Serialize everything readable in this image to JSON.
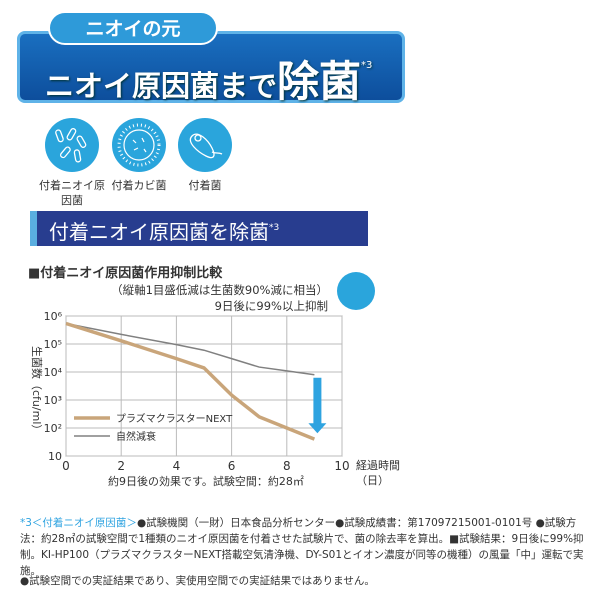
{
  "banner": {
    "pill": "ニオイの元",
    "headline_a": "ニオイ原因菌まで",
    "headline_b": "除菌",
    "sup": "*3"
  },
  "icons": [
    {
      "icon": "bacteria-rods-icon",
      "label": "付着ニオイ原因菌"
    },
    {
      "icon": "mold-spore-icon",
      "label": "付着カビ菌"
    },
    {
      "icon": "bacterium-icon",
      "label": "付着菌"
    }
  ],
  "section": {
    "title": "付着ニオイ原因菌を除菌",
    "sup": "*3"
  },
  "chart_data": {
    "type": "line",
    "title": "■付着ニオイ原因菌作用抑制比較",
    "notes": [
      "（縦軸1目盛低減は生菌数90%減に相当）",
      "9日後に99%以上抑制"
    ],
    "xlabel": "経過時間（日）",
    "ylabel": "生菌数（cfu/ml）",
    "xlim": [
      0,
      10
    ],
    "ylim": [
      10,
      1000000
    ],
    "yscale": "log",
    "grid": true,
    "xticks": [
      "0",
      "2",
      "4",
      "6",
      "8",
      "10"
    ],
    "yticks": [
      "10",
      "10²",
      "10³",
      "10⁴",
      "10⁵",
      "10⁶"
    ],
    "x": [
      0,
      2,
      4,
      5,
      6,
      7,
      8,
      9
    ],
    "series": [
      {
        "name": "プラズマクラスターNEXT",
        "color": "#c9a57a",
        "values": [
          540000,
          130000,
          30000,
          14000,
          1500,
          250,
          100,
          40
        ]
      },
      {
        "name": "自然減衰",
        "color": "#808080",
        "values": [
          540000,
          220000,
          95000,
          60000,
          30000,
          15000,
          11000,
          8000
        ]
      }
    ],
    "arrow_color": "#2ea3e0",
    "caption": "約9日後の効果です。試験空間：約28㎡",
    "legend_position": "bottom-left"
  },
  "footnotes": {
    "head": "*3＜付着ニオイ原因菌＞",
    "body": "●試験機関（一財）日本食品分析センター●試験成績書：第17097215001-0101号 ●試験方法：約28㎡の試験空間で1種類のニオイ原因菌を付着させた試験片で、菌の除去率を算出。■試験結果：9日後に99%抑制。KI-HP100（プラズマクラスターNEXT搭載空気清浄機、DY-S01とイオン濃度が同等の機種）の風量「中」運転で実施。",
    "disclaimer": "●試験空間での実証結果であり、実使用空間での実証結果ではありません。"
  }
}
